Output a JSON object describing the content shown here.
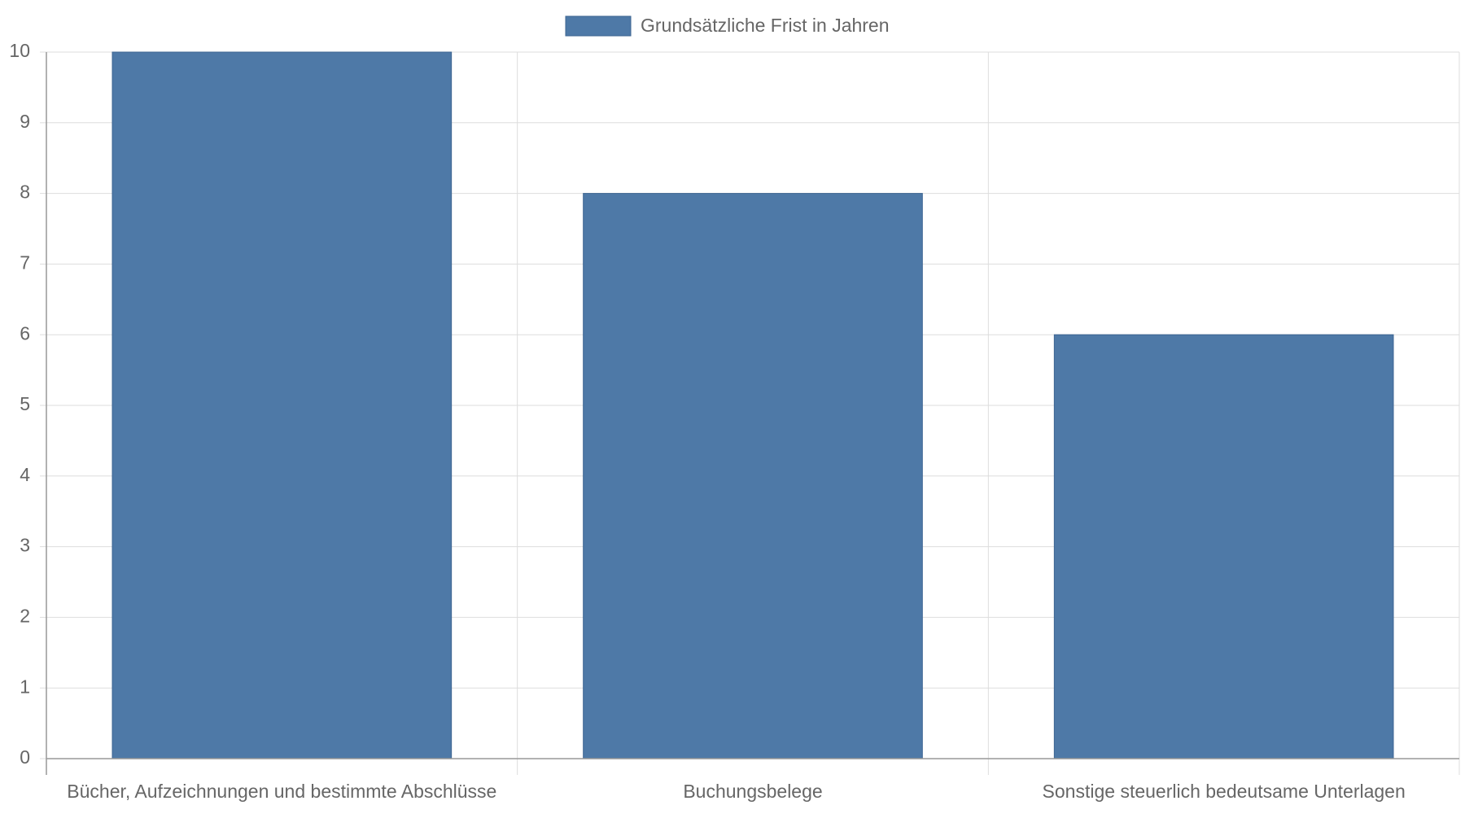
{
  "chart_data": {
    "type": "bar",
    "categories": [
      "Bücher, Aufzeichnungen und bestimmte Abschlüsse",
      "Buchungsbelege",
      "Sonstige steuerlich bedeutsame Unterlagen"
    ],
    "series": [
      {
        "name": "Grundsätzliche Frist in Jahren",
        "color": "#4e79a7",
        "values": [
          10,
          8,
          6
        ]
      }
    ],
    "ylim": [
      0,
      10
    ],
    "yticks": [
      0,
      1,
      2,
      3,
      4,
      5,
      6,
      7,
      8,
      9,
      10
    ],
    "grid": true,
    "legend": "top"
  }
}
